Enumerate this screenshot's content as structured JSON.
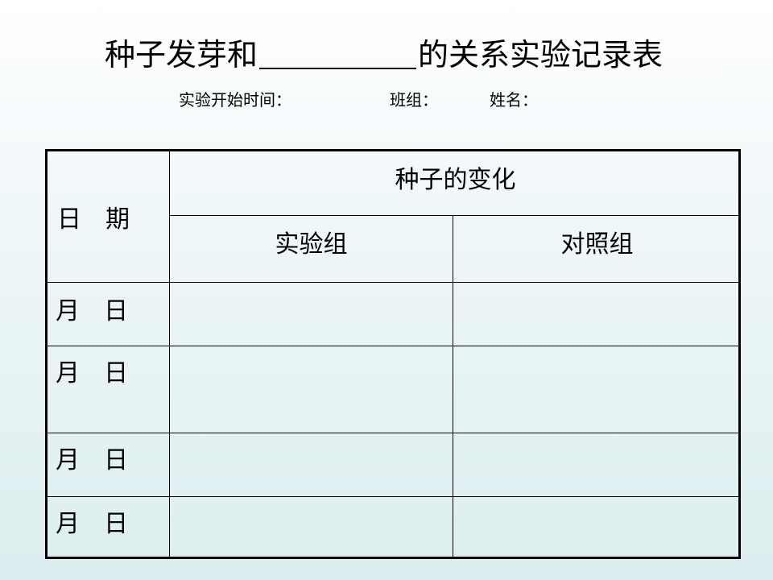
{
  "title": {
    "before": "种子发芽和",
    "after": "的关系实验记录表"
  },
  "subtitle": {
    "start_time": "实验开始时间：",
    "group": "班组：",
    "name": "姓名："
  },
  "table": {
    "date_header": "日　期",
    "change_header": "种子的变化",
    "experiment_group": "实验组",
    "control_group": "对照组",
    "rows": [
      {
        "date": "月　日"
      },
      {
        "date": "月　日"
      },
      {
        "date": "月　日"
      },
      {
        "date": "月　日"
      }
    ]
  }
}
